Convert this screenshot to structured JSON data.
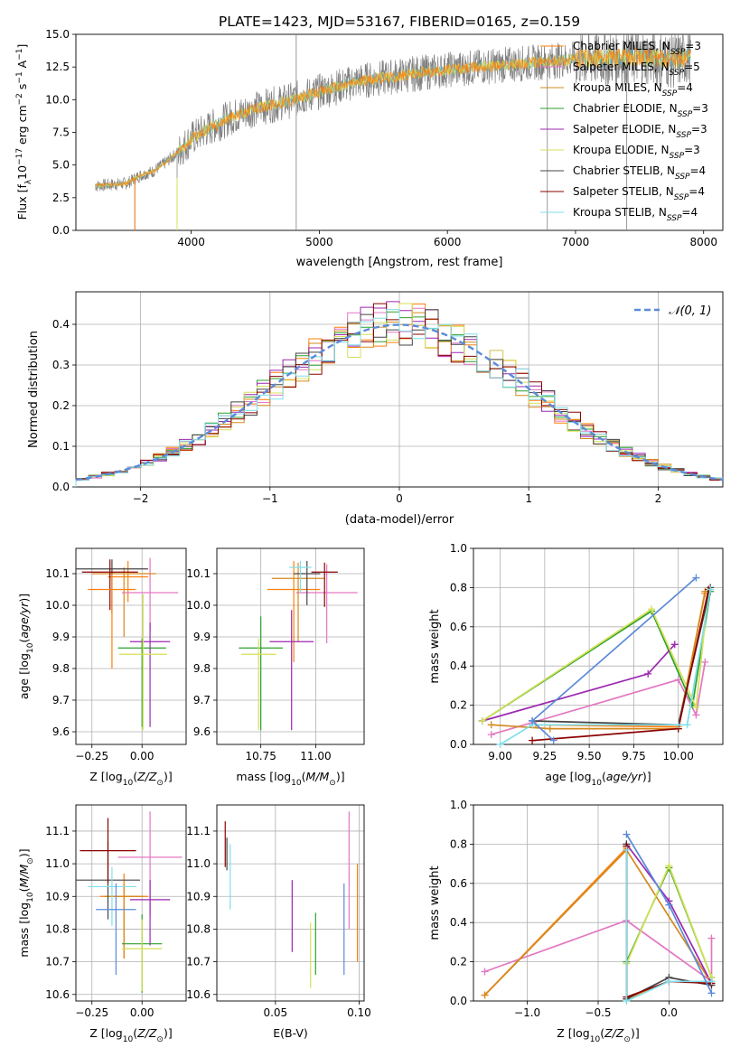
{
  "figure": {
    "title": "PLATE=1423, MJD=53167, FIBERID=0165, z=0.159"
  },
  "series_colors": [
    "#ff7f0e",
    "#e377c2",
    "#d48a1e",
    "#2ca02c",
    "#9c27b0",
    "#d4e157",
    "#444444",
    "#8b0000",
    "#80deea"
  ],
  "spec_colors": {
    "data": "#808080",
    "mean": "#5fb0b0"
  },
  "legend_labels": [
    "Chabrier MILES, N_SSP=3",
    "Salpeter MILES, N_SSP=5",
    "Kroupa MILES, N_SSP=4",
    "Chabrier ELODIE, N_SSP=3",
    "Salpeter ELODIE, N_SSP=3",
    "Kroupa ELODIE, N_SSP=3",
    "Chabrier STELIB, N_SSP=4",
    "Salpeter STELIB, N_SSP=4",
    "Kroupa STELIB, N_SSP=4"
  ],
  "chart_data": [
    {
      "id": "spectrum",
      "type": "line",
      "title": "PLATE=1423, MJD=53167, FIBERID=0165, z=0.159",
      "xlabel": "wavelength [Angstrom, rest frame]",
      "ylabel": "Flux [f_λ 10^-17 erg cm^-2 s^-1 A^-1]",
      "xlim": [
        3100,
        8150
      ],
      "ylim": [
        0,
        15
      ],
      "xticks": [
        "4000",
        "5000",
        "6000",
        "7000",
        "8000"
      ],
      "yticks": [
        "0.0",
        "2.5",
        "5.0",
        "7.5",
        "10.0",
        "12.5",
        "15.0"
      ],
      "continuum": {
        "x": [
          3250,
          3500,
          3600,
          3700,
          3800,
          3900,
          4000,
          4100,
          4300,
          4500,
          4800,
          5000,
          5300,
          5600,
          6000,
          6500,
          7000,
          7500,
          7800,
          7900
        ],
        "y": [
          3.4,
          3.6,
          4.2,
          4.5,
          5.2,
          6.0,
          7.0,
          7.6,
          8.6,
          9.3,
          10.0,
          10.6,
          11.4,
          11.8,
          12.3,
          12.7,
          13.1,
          13.3,
          13.0,
          13.4
        ]
      },
      "spike_lines_x": [
        3560,
        3890,
        4820,
        6780,
        7400
      ],
      "legend": "top-right"
    },
    {
      "id": "residuals",
      "type": "histogram",
      "xlabel": "(data-model)/error",
      "ylabel": "Normed distribution",
      "xlim": [
        -2.5,
        2.5
      ],
      "ylim": [
        0,
        0.48
      ],
      "xticks": [
        "−2",
        "−1",
        "0",
        "1",
        "2"
      ],
      "yticks": [
        "0.0",
        "0.1",
        "0.2",
        "0.3",
        "0.4"
      ],
      "bin_start": -2.5,
      "bin_width": 0.1,
      "legend_label": "𝒩(0, 1)",
      "legend": "top-right"
    },
    {
      "id": "age-vs-Z",
      "type": "errorbar",
      "xlabel": "Z [log10(Z/Z⊙)]",
      "ylabel": "age  [log10(age/yr)]",
      "xlim": [
        -0.33,
        0.22
      ],
      "ylim": [
        9.56,
        10.18
      ],
      "xticks": [
        "−0.25",
        "0.00"
      ],
      "xtick_values": [
        -0.25,
        0.0
      ],
      "yticks": [
        "9.6",
        "9.7",
        "9.8",
        "9.9",
        "10.0",
        "10.1"
      ],
      "ytick_values": [
        9.6,
        9.7,
        9.8,
        9.9,
        10.0,
        10.1
      ],
      "points": [
        {
          "x": -0.07,
          "y": 10.09,
          "xerr": 0.1,
          "yerr_lo": 0.08,
          "yerr_hi": 0.05,
          "c": 0
        },
        {
          "x": 0.04,
          "y": 10.04,
          "xerr": 0.14,
          "yerr_lo": 0.12,
          "yerr_hi": 0.11,
          "c": 1
        },
        {
          "x": -0.09,
          "y": 10.1,
          "xerr": 0.16,
          "yerr_lo": 0.2,
          "yerr_hi": 0.02,
          "c": 2
        },
        {
          "x": 0.0,
          "y": 9.865,
          "xerr": 0.12,
          "yerr_lo": 0.25,
          "yerr_hi": 0.03,
          "c": 3
        },
        {
          "x": 0.04,
          "y": 9.885,
          "xerr": 0.1,
          "yerr_lo": 0.27,
          "yerr_hi": 0.06,
          "c": 4
        },
        {
          "x": 0.005,
          "y": 9.845,
          "xerr": 0.12,
          "yerr_lo": 0.24,
          "yerr_hi": 0.19,
          "c": 5
        },
        {
          "x": -0.15,
          "y": 10.115,
          "xerr": 0.18,
          "yerr_lo": 0.14,
          "yerr_hi": 0.03,
          "c": 6
        },
        {
          "x": -0.16,
          "y": 10.105,
          "xerr": 0.14,
          "yerr_lo": 0.12,
          "yerr_hi": 0.04,
          "c": 7
        },
        {
          "x": -0.15,
          "y": 10.05,
          "xerr": 0.12,
          "yerr_lo": 0.25,
          "yerr_hi": 0.05,
          "c": 0
        }
      ]
    },
    {
      "id": "age-vs-mass",
      "type": "errorbar",
      "xlabel": "mass [log10(M/M⊙)]",
      "ylabel": "",
      "xlim": [
        10.55,
        11.22
      ],
      "ylim": [
        9.56,
        10.18
      ],
      "xticks": [
        "10.75",
        "11.00"
      ],
      "xtick_values": [
        10.75,
        11.0
      ],
      "yticks": [
        "9.6",
        "9.7",
        "9.8",
        "9.9",
        "10.0",
        "10.1"
      ],
      "ytick_values": [
        9.6,
        9.7,
        9.8,
        9.9,
        10.0,
        10.1
      ],
      "points": [
        {
          "x": 10.9,
          "y": 10.05,
          "xerr": 0.12,
          "yerr_lo": 0.23,
          "yerr_hi": 0.09,
          "c": 0
        },
        {
          "x": 11.05,
          "y": 10.04,
          "xerr": 0.14,
          "yerr_lo": 0.16,
          "yerr_hi": 0.09,
          "c": 1
        },
        {
          "x": 10.92,
          "y": 10.085,
          "xerr": 0.12,
          "yerr_lo": 0.2,
          "yerr_hi": 0.05,
          "c": 2
        },
        {
          "x": 10.75,
          "y": 9.865,
          "xerr": 0.1,
          "yerr_lo": 0.26,
          "yerr_hi": 0.1,
          "c": 3
        },
        {
          "x": 10.89,
          "y": 9.885,
          "xerr": 0.1,
          "yerr_lo": 0.28,
          "yerr_hi": 0.1,
          "c": 4
        },
        {
          "x": 10.74,
          "y": 9.845,
          "xerr": 0.08,
          "yerr_lo": 0.24,
          "yerr_hi": 0.05,
          "c": 5
        },
        {
          "x": 10.96,
          "y": 10.1,
          "xerr": 0.06,
          "yerr_lo": 0.1,
          "yerr_hi": 0.04,
          "c": 6
        },
        {
          "x": 11.04,
          "y": 10.105,
          "xerr": 0.06,
          "yerr_lo": 0.11,
          "yerr_hi": 0.03,
          "c": 7
        },
        {
          "x": 10.93,
          "y": 10.12,
          "xerr": 0.05,
          "yerr_lo": 0.08,
          "yerr_hi": 0.02,
          "c": 8
        }
      ]
    },
    {
      "id": "weight-vs-age",
      "type": "line",
      "xlabel": "age  [log10(age/yr)]",
      "ylabel": "mass weight",
      "xlim": [
        8.85,
        10.25
      ],
      "ylim": [
        0,
        1
      ],
      "xticks": [
        "9.00",
        "9.25",
        "9.50",
        "9.75",
        "10.00"
      ],
      "xtick_values": [
        9.0,
        9.25,
        9.5,
        9.75,
        10.0
      ],
      "yticks": [
        "0.0",
        "0.2",
        "0.4",
        "0.6",
        "0.8",
        "1.0"
      ],
      "ytick_values": [
        0,
        0.2,
        0.4,
        0.6,
        0.8,
        1.0
      ],
      "series": [
        {
          "c": 0,
          "points": [
            [
              9.2,
              0.1
            ],
            [
              10.0,
              0.09
            ],
            [
              10.15,
              0.77
            ]
          ]
        },
        {
          "c": 1,
          "points": [
            [
              8.95,
              0.05
            ],
            [
              10.0,
              0.33
            ],
            [
              10.1,
              0.15
            ],
            [
              10.15,
              0.42
            ]
          ]
        },
        {
          "c": 2,
          "points": [
            [
              8.95,
              0.1
            ],
            [
              9.28,
              0.08
            ],
            [
              10.0,
              0.08
            ],
            [
              10.15,
              0.78
            ]
          ]
        },
        {
          "c": 3,
          "points": [
            [
              8.9,
              0.12
            ],
            [
              9.85,
              0.68
            ],
            [
              10.08,
              0.2
            ],
            [
              10.18,
              0.78
            ]
          ]
        },
        {
          "c": 4,
          "points": [
            [
              8.9,
              0.12
            ],
            [
              9.83,
              0.36
            ],
            [
              9.98,
              0.51
            ]
          ]
        },
        {
          "c": 5,
          "points": [
            [
              8.9,
              0.12
            ],
            [
              9.85,
              0.69
            ],
            [
              10.1,
              0.19
            ],
            [
              10.17,
              0.79
            ]
          ]
        },
        {
          "c": 6,
          "points": [
            [
              9.18,
              0.12
            ],
            [
              10.0,
              0.1
            ],
            [
              10.18,
              0.8
            ]
          ]
        },
        {
          "c": 7,
          "points": [
            [
              9.18,
              0.02
            ],
            [
              10.0,
              0.08
            ],
            [
              10.17,
              0.79
            ]
          ]
        },
        {
          "c": 8,
          "points": [
            [
              9.0,
              0.0
            ],
            [
              9.18,
              0.1
            ],
            [
              10.0,
              0.1
            ],
            [
              10.05,
              0.1
            ],
            [
              10.18,
              0.79
            ]
          ]
        },
        {
          "c": -1,
          "color": "#5b8bd9",
          "points": [
            [
              9.3,
              0.02
            ],
            [
              9.18,
              0.12
            ],
            [
              10.1,
              0.85
            ]
          ]
        }
      ]
    },
    {
      "id": "mass-vs-Z",
      "type": "errorbar",
      "xlabel": "Z [log10(Z/Z⊙)]",
      "ylabel": "mass [log10(M/M⊙)]",
      "xlim": [
        -0.33,
        0.22
      ],
      "ylim": [
        10.58,
        11.18
      ],
      "xticks": [
        "−0.25",
        "0.00"
      ],
      "xtick_values": [
        -0.25,
        0.0
      ],
      "yticks": [
        "10.6",
        "10.7",
        "10.8",
        "10.9",
        "11.0",
        "11.1"
      ],
      "ytick_values": [
        10.6,
        10.7,
        10.8,
        10.9,
        11.0,
        11.1
      ],
      "points": [
        {
          "x": -0.09,
          "y": 10.9,
          "xerr": 0.12,
          "yerr_lo": 0.19,
          "yerr_hi": 0.07,
          "c": 0
        },
        {
          "x": 0.04,
          "y": 11.02,
          "xerr": 0.16,
          "yerr_lo": 0.18,
          "yerr_hi": 0.14,
          "c": 1
        },
        {
          "x": -0.09,
          "y": 10.9,
          "xerr": 0.1,
          "yerr_lo": 0.19,
          "yerr_hi": 0.04,
          "c": 2
        },
        {
          "x": 0.0,
          "y": 10.755,
          "xerr": 0.1,
          "yerr_lo": 0.15,
          "yerr_hi": 0.09,
          "c": 3
        },
        {
          "x": 0.04,
          "y": 10.89,
          "xerr": 0.1,
          "yerr_lo": 0.14,
          "yerr_hi": 0.06,
          "c": 4
        },
        {
          "x": 0.0,
          "y": 10.74,
          "xerr": 0.1,
          "yerr_lo": 0.13,
          "yerr_hi": 0.09,
          "c": 5
        },
        {
          "x": -0.17,
          "y": 10.95,
          "xerr": 0.16,
          "yerr_lo": 0.12,
          "yerr_hi": 0.12,
          "c": 6
        },
        {
          "x": -0.17,
          "y": 11.04,
          "xerr": 0.14,
          "yerr_lo": 0.1,
          "yerr_hi": 0.1,
          "c": 7
        },
        {
          "x": -0.15,
          "y": 10.93,
          "xerr": 0.12,
          "yerr_lo": 0.12,
          "yerr_hi": 0.06,
          "c": 8
        },
        {
          "x": -0.13,
          "y": 10.86,
          "xerr": 0.1,
          "yerr_lo": 0.2,
          "yerr_hi": 0.08,
          "c": -1,
          "color": "#5b8bd9"
        }
      ]
    },
    {
      "id": "mass-vs-EBV",
      "type": "errorbar",
      "xlabel": "E(B-V)",
      "ylabel": "",
      "xlim": [
        0.015,
        0.103
      ],
      "ylim": [
        10.58,
        11.18
      ],
      "xticks": [
        "0.05",
        "0.10"
      ],
      "xtick_values": [
        0.05,
        0.1
      ],
      "yticks": [
        "10.6",
        "10.7",
        "10.8",
        "10.9",
        "11.0",
        "11.1"
      ],
      "ytick_values": [
        10.6,
        10.7,
        10.8,
        10.9,
        11.0,
        11.1
      ],
      "points": [
        {
          "x": 0.099,
          "y": 10.85,
          "xerr": 0,
          "yerr_lo": 0.15,
          "yerr_hi": 0.15,
          "c": 0
        },
        {
          "x": 0.094,
          "y": 10.98,
          "xerr": 0,
          "yerr_lo": 0.18,
          "yerr_hi": 0.18,
          "c": 1
        },
        {
          "x": 0.074,
          "y": 10.76,
          "xerr": 0,
          "yerr_lo": 0.1,
          "yerr_hi": 0.09,
          "c": 3
        },
        {
          "x": 0.06,
          "y": 10.84,
          "xerr": 0,
          "yerr_lo": 0.11,
          "yerr_hi": 0.11,
          "c": 4
        },
        {
          "x": 0.071,
          "y": 10.72,
          "xerr": 0,
          "yerr_lo": 0.1,
          "yerr_hi": 0.1,
          "c": 5
        },
        {
          "x": 0.021,
          "y": 11.03,
          "xerr": 0,
          "yerr_lo": 0.05,
          "yerr_hi": 0.05,
          "c": 6
        },
        {
          "x": 0.02,
          "y": 11.06,
          "xerr": 0,
          "yerr_lo": 0.07,
          "yerr_hi": 0.07,
          "c": 7
        },
        {
          "x": 0.023,
          "y": 10.96,
          "xerr": 0,
          "yerr_lo": 0.1,
          "yerr_hi": 0.1,
          "c": 8
        },
        {
          "x": 0.091,
          "y": 10.8,
          "xerr": 0,
          "yerr_lo": 0.14,
          "yerr_hi": 0.14,
          "c": -1,
          "color": "#5b8bd9"
        }
      ]
    },
    {
      "id": "weight-vs-Z",
      "type": "line",
      "xlabel": "Z [log10(Z/Z⊙)]",
      "ylabel": "mass weight",
      "xlim": [
        -1.38,
        0.38
      ],
      "ylim": [
        0,
        1
      ],
      "xticks": [
        "−1.0",
        "−0.5",
        "0.0"
      ],
      "xtick_values": [
        -1.0,
        -0.5,
        0.0
      ],
      "yticks": [
        "0.0",
        "0.2",
        "0.4",
        "0.6",
        "0.8",
        "1.0"
      ],
      "ytick_values": [
        0,
        0.2,
        0.4,
        0.6,
        0.8,
        1.0
      ],
      "series": [
        {
          "c": 0,
          "points": [
            [
              -1.3,
              0.03
            ],
            [
              -0.3,
              0.78
            ],
            [
              -0.3,
              0.01
            ],
            [
              0.0,
              0.1
            ],
            [
              0.3,
              0.1
            ]
          ]
        },
        {
          "c": 1,
          "points": [
            [
              -1.3,
              0.15
            ],
            [
              -0.3,
              0.41
            ],
            [
              0.3,
              0.1
            ],
            [
              0.3,
              0.32
            ]
          ]
        },
        {
          "c": 2,
          "points": [
            [
              -1.3,
              0.03
            ],
            [
              -0.3,
              0.77
            ],
            [
              0.3,
              0.09
            ]
          ]
        },
        {
          "c": 3,
          "points": [
            [
              -0.3,
              0.2
            ],
            [
              0.0,
              0.68
            ],
            [
              0.3,
              0.12
            ]
          ]
        },
        {
          "c": 4,
          "points": [
            [
              -0.3,
              0.8
            ],
            [
              0.0,
              0.51
            ],
            [
              0.3,
              0.09
            ]
          ]
        },
        {
          "c": 5,
          "points": [
            [
              -0.3,
              0.19
            ],
            [
              0.0,
              0.69
            ],
            [
              0.3,
              0.12
            ]
          ]
        },
        {
          "c": 6,
          "points": [
            [
              -0.3,
              0.8
            ],
            [
              -0.3,
              0.01
            ],
            [
              0.0,
              0.12
            ],
            [
              0.3,
              0.08
            ]
          ]
        },
        {
          "c": 7,
          "points": [
            [
              -0.3,
              0.79
            ],
            [
              -0.3,
              0.02
            ],
            [
              0.0,
              0.1
            ],
            [
              0.3,
              0.09
            ]
          ]
        },
        {
          "c": 8,
          "points": [
            [
              -0.3,
              0.77
            ],
            [
              -0.3,
              0.0
            ],
            [
              0.0,
              0.1
            ],
            [
              0.3,
              0.1
            ]
          ]
        },
        {
          "c": -1,
          "color": "#5b8bd9",
          "points": [
            [
              -0.3,
              0.85
            ],
            [
              0.0,
              0.49
            ],
            [
              0.3,
              0.04
            ]
          ]
        }
      ]
    }
  ]
}
